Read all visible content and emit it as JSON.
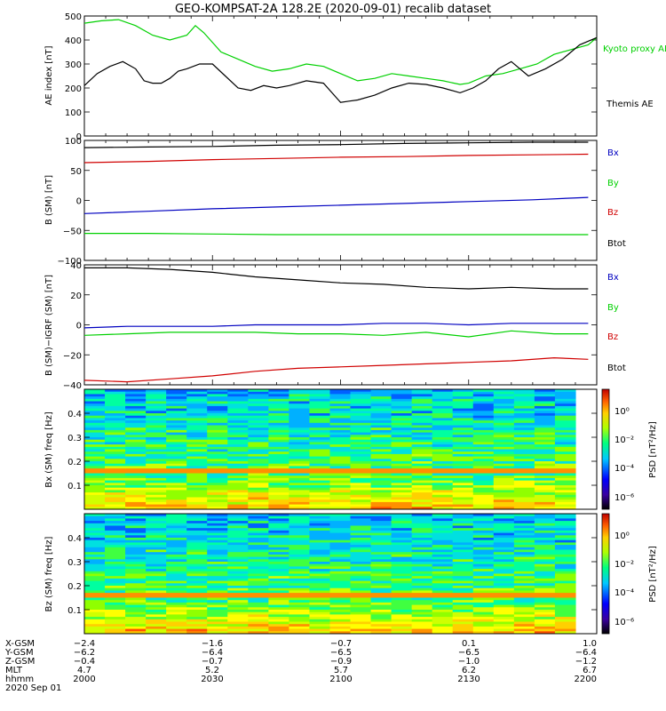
{
  "title": "GEO-KOMPSAT-2A 128.2E (2020-09-01) recalib dataset",
  "colors": {
    "black": "#000000",
    "green": "#00d000",
    "red": "#d00000",
    "blue": "#0000c0"
  },
  "chart_data": [
    {
      "type": "line",
      "ylabel": "AE index [nT]",
      "ylim": [
        0,
        500
      ],
      "yticks": [
        "0",
        "100",
        "200",
        "300",
        "400",
        "500"
      ],
      "x_unit": "hhmm",
      "legend": [
        "Kyoto proxy AE",
        "Themis AE"
      ],
      "series": [
        {
          "name": "Kyoto proxy AE",
          "color": "#00d000",
          "x": [
            2000,
            2004,
            2008,
            2012,
            2016,
            2020,
            2024,
            2026,
            2028,
            2032,
            2036,
            2040,
            2044,
            2048,
            2052,
            2056,
            2100,
            2104,
            2108,
            2112,
            2116,
            2120,
            2124,
            2128,
            2130,
            2134,
            2138,
            2142,
            2146,
            2150,
            2154,
            2158,
            2200
          ],
          "y": [
            470,
            480,
            485,
            460,
            420,
            400,
            420,
            460,
            430,
            350,
            320,
            290,
            270,
            280,
            300,
            290,
            260,
            230,
            240,
            260,
            250,
            240,
            230,
            215,
            220,
            250,
            260,
            280,
            300,
            340,
            360,
            380,
            410
          ]
        },
        {
          "name": "Themis AE",
          "color": "#000000",
          "x": [
            2000,
            2003,
            2006,
            2009,
            2012,
            2014,
            2016,
            2018,
            2020,
            2022,
            2024,
            2027,
            2030,
            2033,
            2036,
            2039,
            2042,
            2045,
            2048,
            2052,
            2056,
            2100,
            2102,
            2104,
            2108,
            2112,
            2116,
            2120,
            2124,
            2128,
            2131,
            2134,
            2137,
            2140,
            2144,
            2148,
            2152,
            2156,
            2200
          ],
          "y": [
            210,
            260,
            290,
            310,
            280,
            230,
            220,
            220,
            240,
            270,
            280,
            300,
            300,
            250,
            200,
            190,
            210,
            200,
            210,
            230,
            220,
            140,
            145,
            150,
            170,
            200,
            220,
            215,
            200,
            180,
            200,
            230,
            280,
            310,
            250,
            280,
            320,
            380,
            410
          ]
        }
      ]
    },
    {
      "type": "line",
      "ylabel": "B (SM) [nT]",
      "ylim": [
        -100,
        100
      ],
      "yticks": [
        "100",
        "50",
        "0",
        "−50",
        "−100"
      ],
      "x_unit": "hhmm",
      "legend": [
        "Bx",
        "By",
        "Bz",
        "Btot"
      ],
      "series": [
        {
          "name": "Btot",
          "color": "#000000",
          "x": [
            2000,
            2015,
            2030,
            2045,
            2100,
            2115,
            2130,
            2145,
            2158
          ],
          "y": [
            88,
            89,
            90,
            92,
            93,
            95,
            96,
            97,
            97
          ]
        },
        {
          "name": "Bz",
          "color": "#d00000",
          "x": [
            2000,
            2015,
            2030,
            2045,
            2100,
            2115,
            2130,
            2145,
            2158
          ],
          "y": [
            63,
            65,
            68,
            70,
            72,
            73,
            75,
            76,
            77
          ]
        },
        {
          "name": "Bx",
          "color": "#0000c0",
          "x": [
            2000,
            2015,
            2030,
            2045,
            2100,
            2115,
            2130,
            2145,
            2158
          ],
          "y": [
            -22,
            -18,
            -14,
            -11,
            -8,
            -5,
            -2,
            1,
            5
          ]
        },
        {
          "name": "By",
          "color": "#00d000",
          "x": [
            2000,
            2015,
            2030,
            2045,
            2100,
            2115,
            2130,
            2145,
            2158
          ],
          "y": [
            -55,
            -55,
            -56,
            -57,
            -57,
            -57,
            -57,
            -57,
            -57
          ]
        }
      ]
    },
    {
      "type": "line",
      "ylabel": "B (SM)−IGRF (SM) [nT]",
      "ylim": [
        -40,
        40
      ],
      "yticks": [
        "40",
        "20",
        "0",
        "−20",
        "−40"
      ],
      "x_unit": "hhmm",
      "legend": [
        "Bx",
        "By",
        "Bz",
        "Btot"
      ],
      "series": [
        {
          "name": "Btot",
          "color": "#000000",
          "x": [
            2000,
            2010,
            2020,
            2030,
            2040,
            2050,
            2100,
            2110,
            2120,
            2130,
            2140,
            2150,
            2158
          ],
          "y": [
            38,
            38,
            37,
            35,
            32,
            30,
            28,
            27,
            25,
            24,
            25,
            24,
            24
          ]
        },
        {
          "name": "Bx",
          "color": "#0000c0",
          "x": [
            2000,
            2010,
            2020,
            2030,
            2040,
            2050,
            2100,
            2110,
            2120,
            2130,
            2140,
            2150,
            2158
          ],
          "y": [
            -2,
            -1,
            -1,
            -1,
            0,
            0,
            0,
            1,
            1,
            0,
            1,
            1,
            1
          ]
        },
        {
          "name": "By",
          "color": "#00d000",
          "x": [
            2000,
            2010,
            2020,
            2030,
            2040,
            2050,
            2100,
            2110,
            2120,
            2130,
            2140,
            2150,
            2158
          ],
          "y": [
            -7,
            -6,
            -5,
            -5,
            -5,
            -6,
            -6,
            -7,
            -5,
            -8,
            -4,
            -6,
            -6
          ]
        },
        {
          "name": "Bz",
          "color": "#d00000",
          "x": [
            2000,
            2010,
            2020,
            2030,
            2040,
            2050,
            2100,
            2110,
            2120,
            2130,
            2140,
            2150,
            2158
          ],
          "y": [
            -37,
            -38,
            -36,
            -34,
            -31,
            -29,
            -28,
            -27,
            -26,
            -25,
            -24,
            -22,
            -23
          ]
        }
      ]
    },
    {
      "type": "heatmap",
      "ylabel": "Bx (SM) freq [Hz]",
      "ylim": [
        0,
        0.5
      ],
      "yticks": [
        "0.1",
        "0.2",
        "0.3",
        "0.4"
      ],
      "colorbar_label": "PSD [nT²/Hz]",
      "colorbar_ticks": [
        "10⁰",
        "10⁻²",
        "10⁻⁴",
        "10⁻⁶"
      ],
      "colormap": "rainbow"
    },
    {
      "type": "heatmap",
      "ylabel": "Bz (SM) freq [Hz]",
      "ylim": [
        0,
        0.5
      ],
      "yticks": [
        "0.1",
        "0.2",
        "0.3",
        "0.4"
      ],
      "colorbar_label": "PSD [nT²/Hz]",
      "colorbar_ticks": [
        "10⁰",
        "10⁻²",
        "10⁻⁴",
        "10⁻⁶"
      ],
      "colormap": "rainbow"
    }
  ],
  "axis_table": {
    "row_labels": [
      "X-GSM",
      "Y-GSM",
      "Z-GSM",
      "MLT",
      "hhmm"
    ],
    "columns": [
      [
        "−2.4",
        "−6.2",
        "−0.4",
        "4.7",
        "2000"
      ],
      [
        "−1.6",
        "−6.4",
        "−0.7",
        "5.2",
        "2030"
      ],
      [
        "−0.7",
        "−6.5",
        "−0.9",
        "5.7",
        "2100"
      ],
      [
        "0.1",
        "−6.5",
        "−1.0",
        "6.2",
        "2130"
      ],
      [
        "1.0",
        "−6.4",
        "−1.2",
        "6.7",
        "2200"
      ]
    ],
    "date": "2020 Sep 01"
  }
}
